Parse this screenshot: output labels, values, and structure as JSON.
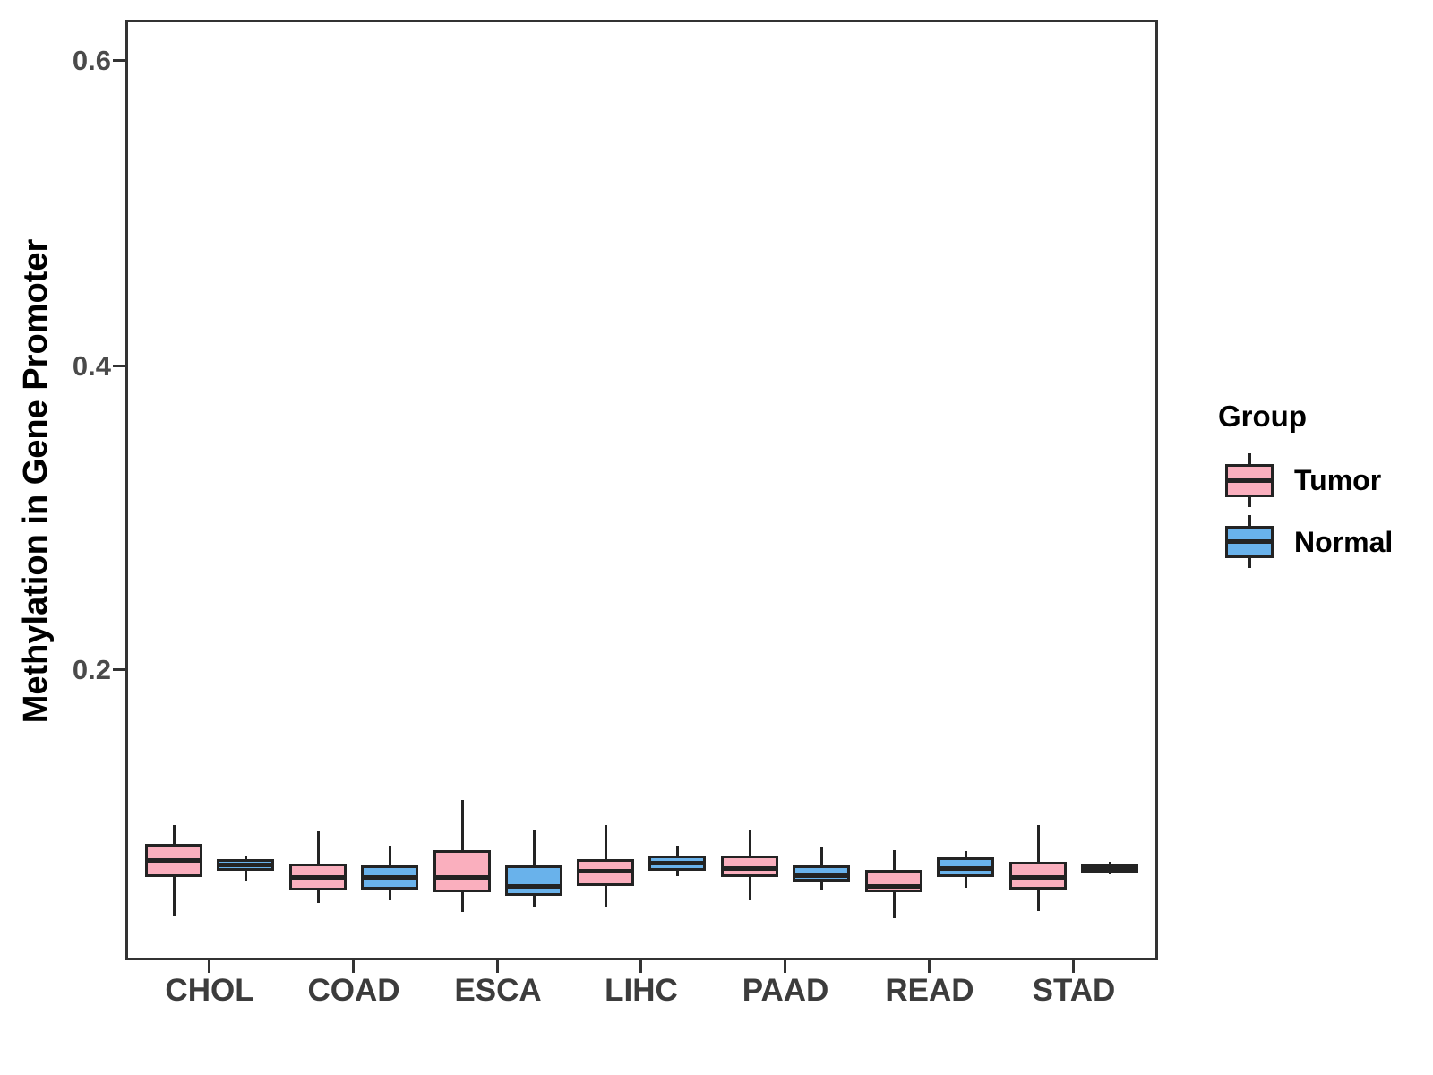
{
  "figure": {
    "background": "#FFFFFF"
  },
  "chart_data": {
    "type": "grouped_boxplot",
    "title": "",
    "xlabel": "",
    "ylabel": "Methylation in Gene Promoter",
    "categories": [
      "CHOL",
      "COAD",
      "ESCA",
      "LIHC",
      "PAAD",
      "READ",
      "STAD"
    ],
    "y_axis": {
      "ticks": [
        "0.2",
        "0.4",
        "0.6"
      ],
      "tick_values": [
        0.2,
        0.4,
        0.6
      ],
      "range": [
        0.01,
        0.627
      ],
      "grid": false
    },
    "legend": {
      "title": "Group",
      "position": "right"
    },
    "colors": {
      "tumor_fill": "#FAAFBE",
      "normal_fill": "#69B2EB",
      "stroke": "#232323",
      "panel_border": "#333333"
    },
    "series": [
      {
        "name": "Tumor",
        "fill": "#FAAFBE",
        "stroke": "#232323",
        "boxes": [
          {
            "category": "CHOL",
            "whislo": 0.038,
            "q1": 0.064,
            "med": 0.075,
            "q3": 0.086,
            "whishi": 0.098
          },
          {
            "category": "COAD",
            "whislo": 0.047,
            "q1": 0.055,
            "med": 0.064,
            "q3": 0.073,
            "whishi": 0.094
          },
          {
            "category": "ESCA",
            "whislo": 0.041,
            "q1": 0.054,
            "med": 0.064,
            "q3": 0.082,
            "whishi": 0.115
          },
          {
            "category": "LIHC",
            "whislo": 0.044,
            "q1": 0.058,
            "med": 0.068,
            "q3": 0.076,
            "whishi": 0.098
          },
          {
            "category": "PAAD",
            "whislo": 0.049,
            "q1": 0.064,
            "med": 0.07,
            "q3": 0.078,
            "whishi": 0.095
          },
          {
            "category": "READ",
            "whislo": 0.037,
            "q1": 0.054,
            "med": 0.058,
            "q3": 0.069,
            "whishi": 0.082
          },
          {
            "category": "STAD",
            "whislo": 0.042,
            "q1": 0.056,
            "med": 0.064,
            "q3": 0.074,
            "whishi": 0.098
          }
        ]
      },
      {
        "name": "Normal",
        "fill": "#69B2EB",
        "stroke": "#232323",
        "boxes": [
          {
            "category": "CHOL",
            "whislo": 0.062,
            "q1": 0.068,
            "med": 0.072,
            "q3": 0.076,
            "whishi": 0.078
          },
          {
            "category": "COAD",
            "whislo": 0.049,
            "q1": 0.056,
            "med": 0.064,
            "q3": 0.072,
            "whishi": 0.085
          },
          {
            "category": "ESCA",
            "whislo": 0.044,
            "q1": 0.052,
            "med": 0.058,
            "q3": 0.072,
            "whishi": 0.095
          },
          {
            "category": "LIHC",
            "whislo": 0.065,
            "q1": 0.068,
            "med": 0.073,
            "q3": 0.078,
            "whishi": 0.085
          },
          {
            "category": "PAAD",
            "whislo": 0.056,
            "q1": 0.061,
            "med": 0.065,
            "q3": 0.072,
            "whishi": 0.084
          },
          {
            "category": "READ",
            "whislo": 0.057,
            "q1": 0.064,
            "med": 0.07,
            "q3": 0.077,
            "whishi": 0.081
          },
          {
            "category": "STAD",
            "whislo": 0.066,
            "q1": 0.067,
            "med": 0.07,
            "q3": 0.073,
            "whishi": 0.074
          }
        ]
      }
    ]
  }
}
